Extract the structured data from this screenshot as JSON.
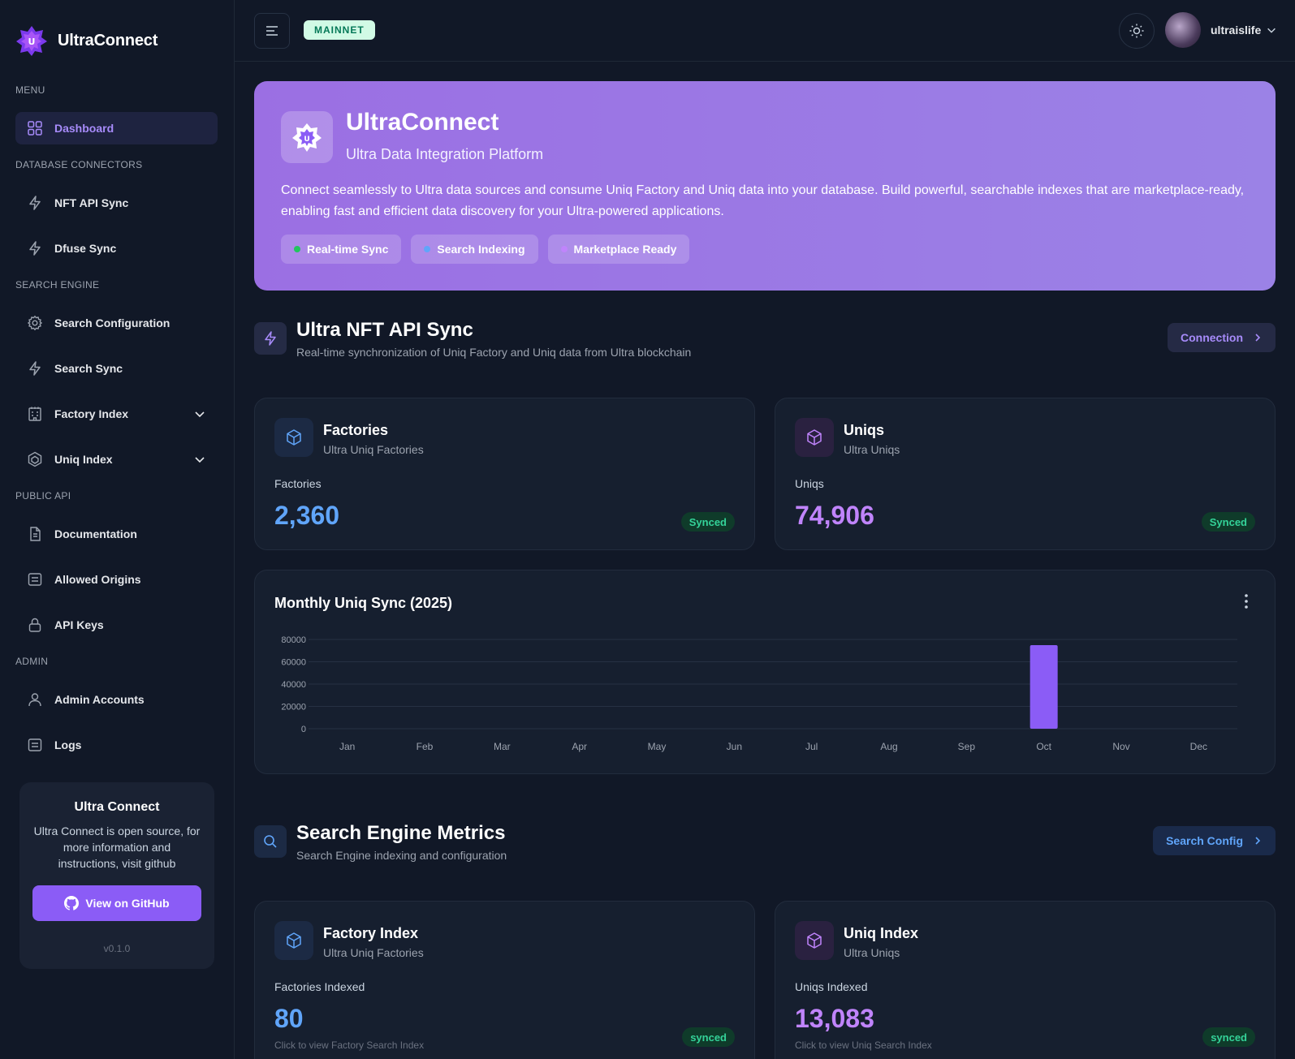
{
  "brand": {
    "name": "UltraConnect"
  },
  "sidebar": {
    "sections": {
      "menu": "MENU",
      "db": "DATABASE CONNECTORS",
      "search": "SEARCH ENGINE",
      "public": "PUBLIC API",
      "admin": "ADMIN"
    },
    "items": {
      "dashboard": "Dashboard",
      "nft_api_sync": "NFT API Sync",
      "dfuse_sync": "Dfuse Sync",
      "search_config": "Search Configuration",
      "search_sync": "Search Sync",
      "factory_index": "Factory Index",
      "uniq_index": "Uniq Index",
      "documentation": "Documentation",
      "allowed_origins": "Allowed Origins",
      "api_keys": "API Keys",
      "admin_accounts": "Admin Accounts",
      "logs": "Logs"
    },
    "promo": {
      "title": "Ultra Connect",
      "text": "Ultra Connect is open source, for more information and instructions, visit github",
      "button": "View on GitHub",
      "version": "v0.1.0"
    }
  },
  "header": {
    "network": "MAINNET",
    "username": "ultraislife"
  },
  "hero": {
    "title": "UltraConnect",
    "subtitle": "Ultra Data Integration Platform",
    "description": "Connect seamlessly to Ultra data sources and consume Uniq Factory and Uniq data into your database. Build powerful, searchable indexes that are marketplace-ready, enabling fast and efficient data discovery for your Ultra-powered applications.",
    "chips": [
      {
        "label": "Real-time Sync",
        "color": "#22c55e"
      },
      {
        "label": "Search Indexing",
        "color": "#60a5fa"
      },
      {
        "label": "Marketplace Ready",
        "color": "#c084fc"
      }
    ]
  },
  "nft_section": {
    "title": "Ultra NFT API Sync",
    "subtitle": "Real-time synchronization of Uniq Factory and Uniq data from Ultra blockchain",
    "button": "Connection",
    "factories": {
      "title": "Factories",
      "subtitle": "Ultra Uniq Factories",
      "label": "Factories",
      "value": "2,360",
      "status": "Synced"
    },
    "uniqs": {
      "title": "Uniqs",
      "subtitle": "Ultra Uniqs",
      "label": "Uniqs",
      "value": "74,906",
      "status": "Synced"
    }
  },
  "chart_data": {
    "type": "bar",
    "title": "Monthly Uniq Sync (2025)",
    "categories": [
      "Jan",
      "Feb",
      "Mar",
      "Apr",
      "May",
      "Jun",
      "Jul",
      "Aug",
      "Sep",
      "Oct",
      "Nov",
      "Dec"
    ],
    "values": [
      0,
      0,
      0,
      0,
      0,
      0,
      0,
      0,
      0,
      74906,
      0,
      0
    ],
    "ylim": [
      0,
      80000
    ],
    "yticks": [
      "80000",
      "60000",
      "40000",
      "20000",
      "0"
    ],
    "grid": true,
    "bar_color": "#8b5cf6"
  },
  "search_section": {
    "title": "Search Engine Metrics",
    "subtitle": "Search Engine indexing and configuration",
    "button": "Search Config",
    "factory_index": {
      "title": "Factory Index",
      "subtitle": "Ultra Uniq Factories",
      "label": "Factories Indexed",
      "value": "80",
      "hint": "Click to view Factory Search Index",
      "status": "synced"
    },
    "uniq_index": {
      "title": "Uniq Index",
      "subtitle": "Ultra Uniqs",
      "label": "Uniqs Indexed",
      "value": "13,083",
      "hint": "Click to view Uniq Search Index",
      "status": "synced"
    }
  },
  "colors": {
    "accent": "#8b5cf6",
    "blue": "#60a5fa",
    "purple": "#c084fc",
    "green": "#34d399"
  }
}
